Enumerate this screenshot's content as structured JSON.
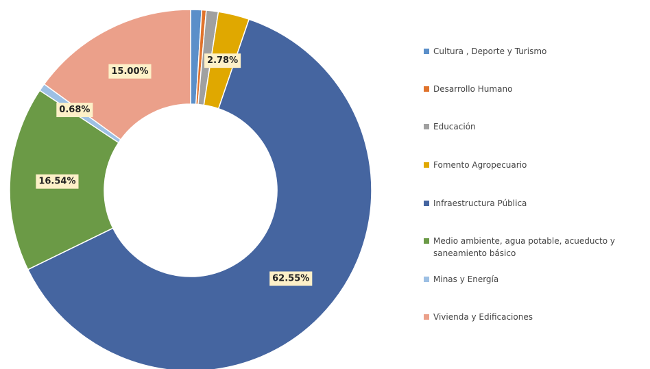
{
  "chart_data": {
    "type": "pie",
    "categories": [
      "Cultura , Deporte y Turismo",
      "Desarrollo Humano",
      "Educación",
      "Fomento Agropecuario",
      "Infraestructura Pública",
      "Medio ambiente, agua potable, acueducto y saneamiento básico",
      "Minas y Energía",
      "Vivienda y Edificaciones"
    ],
    "values": [
      0.98,
      0.4,
      1.07,
      2.78,
      62.55,
      16.54,
      0.68,
      15.0
    ],
    "value_labels": [
      null,
      null,
      null,
      "2.78%",
      "62.55%",
      "16.54%",
      "0.68%",
      "15.00%"
    ],
    "colors": [
      "#5b8fc9",
      "#e0732c",
      "#a0a0a0",
      "#e0a800",
      "#4565a0",
      "#6b9a46",
      "#9dc0e4",
      "#eba08a"
    ],
    "legend": "right"
  }
}
